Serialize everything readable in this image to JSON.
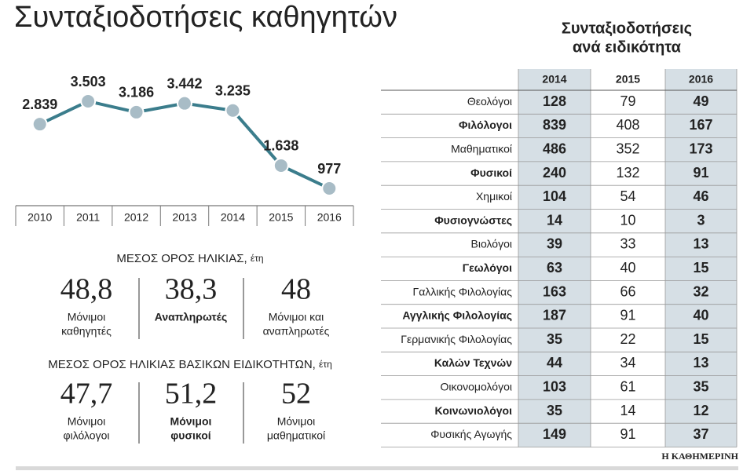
{
  "header": {
    "title": "Συνταξιοδοτήσεις καθηγητών"
  },
  "chart_data": {
    "type": "line",
    "categories": [
      "2010",
      "2011",
      "2012",
      "2013",
      "2014",
      "2015",
      "2016"
    ],
    "values": [
      2839,
      3503,
      3186,
      3442,
      3235,
      1638,
      977
    ],
    "value_labels": [
      "2.839",
      "3.503",
      "3.186",
      "3.442",
      "3.235",
      "1.638",
      "977"
    ],
    "color": "#3b7d8c",
    "marker_color": "#a8bcc6"
  },
  "age_stats": [
    {
      "heading": "ΜΕΣΟΣ ΟΡΟΣ ΗΛΙΚΙΑΣ,",
      "unit": "έτη",
      "items": [
        {
          "value": "48,8",
          "label": [
            "Μόνιμοι",
            "καθηγητές"
          ]
        },
        {
          "value": "38,3",
          "label": [
            "Αναπληρωτές"
          ]
        },
        {
          "value": "48",
          "label": [
            "Μόνιμοι και",
            "αναπληρωτές"
          ]
        }
      ]
    },
    {
      "heading": "ΜΕΣΟΣ ΟΡΟΣ ΗΛΙΚΙΑΣ ΒΑΣΙΚΩΝ ΕΙΔΙΚΟΤΗΤΩΝ,",
      "unit": "έτη",
      "items": [
        {
          "value": "47,7",
          "label": [
            "Μόνιμοι",
            "φιλόλογοι"
          ]
        },
        {
          "value": "51,2",
          "label": [
            "Μόνιμοι",
            "φυσικοί"
          ]
        },
        {
          "value": "52",
          "label": [
            "Μόνιμοι",
            "μαθηματικοί"
          ]
        }
      ]
    }
  ],
  "table": {
    "title": [
      "Συνταξιοδοτήσεις",
      "ανά ειδικότητα"
    ],
    "columns": [
      "2014",
      "2015",
      "2016"
    ],
    "rows": [
      {
        "name": "Θεολόγοι",
        "values": [
          128,
          79,
          49
        ]
      },
      {
        "name": "Φιλόλογοι",
        "values": [
          839,
          408,
          167
        ]
      },
      {
        "name": "Μαθηματικοί",
        "values": [
          486,
          352,
          173
        ]
      },
      {
        "name": "Φυσικοί",
        "values": [
          240,
          132,
          91
        ]
      },
      {
        "name": "Χημικοί",
        "values": [
          104,
          54,
          46
        ]
      },
      {
        "name": "Φυσιογνώστες",
        "values": [
          14,
          10,
          3
        ]
      },
      {
        "name": "Βιολόγοι",
        "values": [
          39,
          33,
          13
        ]
      },
      {
        "name": "Γεωλόγοι",
        "values": [
          63,
          40,
          15
        ]
      },
      {
        "name": "Γαλλικής Φιλολογίας",
        "values": [
          163,
          66,
          32
        ]
      },
      {
        "name": "Αγγλικής Φιλολογίας",
        "values": [
          187,
          91,
          40
        ]
      },
      {
        "name": "Γερμανικής Φιλολογίας",
        "values": [
          35,
          22,
          15
        ]
      },
      {
        "name": "Καλών Τεχνών",
        "values": [
          44,
          34,
          13
        ]
      },
      {
        "name": "Οικονομολόγοι",
        "values": [
          103,
          61,
          35
        ]
      },
      {
        "name": "Κοινωνιολόγοι",
        "values": [
          35,
          14,
          12
        ]
      },
      {
        "name": "Φυσικής Αγωγής",
        "values": [
          149,
          91,
          37
        ]
      }
    ]
  },
  "footer": {
    "source": "Η ΚΑΘΗΜΕΡΙΝΗ"
  }
}
